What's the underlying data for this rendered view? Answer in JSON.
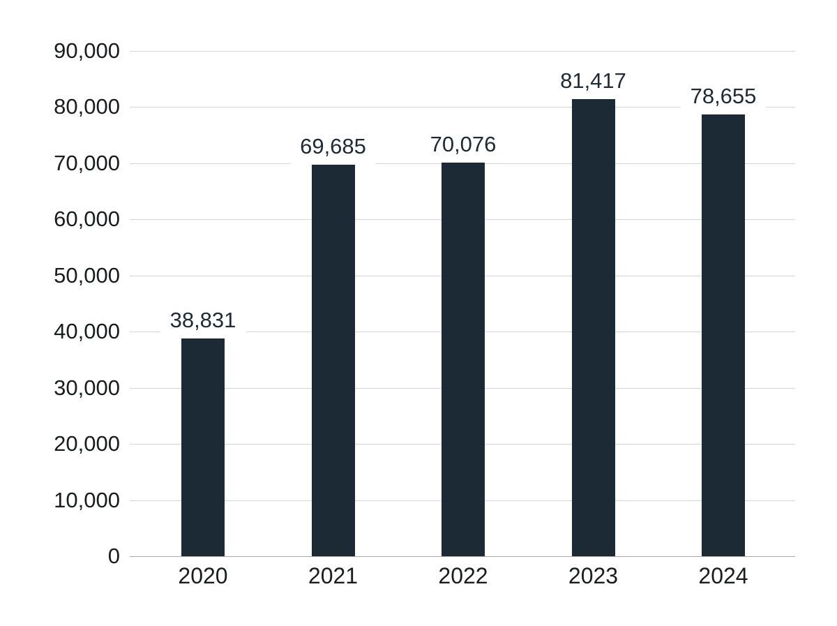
{
  "chart_data": {
    "type": "bar",
    "categories": [
      "2020",
      "2021",
      "2022",
      "2023",
      "2024"
    ],
    "values": [
      38831,
      69685,
      70076,
      81417,
      78655
    ],
    "value_labels": [
      "38,831",
      "69,685",
      "70,076",
      "81,417",
      "78,655"
    ],
    "series": [
      {
        "name": "annual-total",
        "values": [
          38831,
          69685,
          70076,
          81417,
          78655
        ]
      }
    ],
    "title": "",
    "xlabel": "",
    "ylabel": "",
    "ylim": [
      0,
      90000
    ],
    "y_ticks": [
      0,
      10000,
      20000,
      30000,
      40000,
      50000,
      60000,
      70000,
      80000,
      90000
    ],
    "y_tick_labels": [
      "0",
      "10,000",
      "20,000",
      "30,000",
      "40,000",
      "50,000",
      "60,000",
      "70,000",
      "80,000",
      "90,000"
    ],
    "grid": true,
    "legend": false,
    "legend_position": "none",
    "colors": {
      "bar": "#1c2a35",
      "value_label": "#1e2a35",
      "axis_label": "#1b1c1e",
      "gridline": "#d5d5d5",
      "axis_line": "#a9a9a9",
      "background": "#ffffff"
    }
  }
}
